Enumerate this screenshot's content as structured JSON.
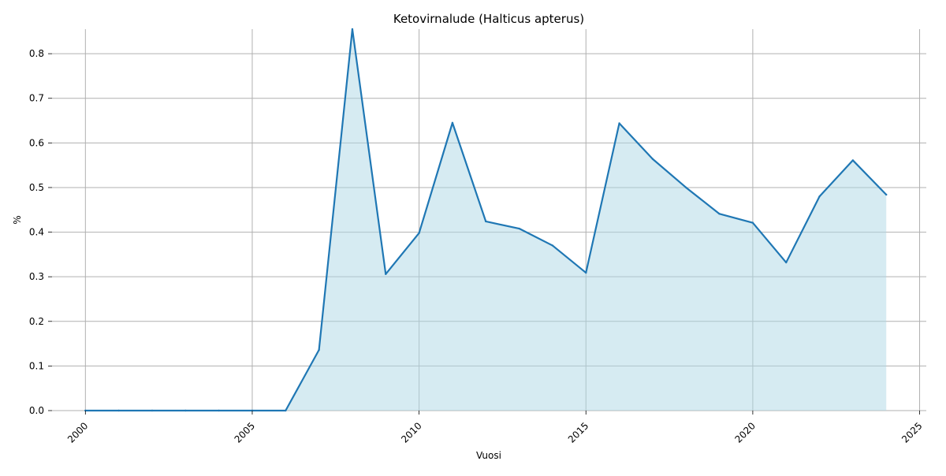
{
  "chart_data": {
    "type": "area",
    "title": "Ketovirnalude (Halticus apterus)",
    "xlabel": "Vuosi",
    "ylabel": "%",
    "xlim": [
      1999.0,
      2025.2
    ],
    "ylim": [
      0,
      0.855
    ],
    "x_ticks": [
      2000,
      2005,
      2010,
      2015,
      2020,
      2025
    ],
    "y_ticks": [
      0.0,
      0.1,
      0.2,
      0.3,
      0.4,
      0.5,
      0.6,
      0.7,
      0.8
    ],
    "x_tick_rotation": 45,
    "grid": true,
    "legend": "none",
    "series": [
      {
        "x": [
          2000,
          2001,
          2002,
          2003,
          2004,
          2005,
          2006,
          2007,
          2008,
          2009,
          2010,
          2011,
          2012,
          2013,
          2014,
          2015,
          2016,
          2017,
          2018,
          2019,
          2020,
          2021,
          2022,
          2023,
          2024
        ],
        "values": [
          0,
          0,
          0,
          0,
          0,
          0,
          0,
          0.136,
          0.855,
          0.306,
          0.398,
          0.645,
          0.424,
          0.408,
          0.37,
          0.309,
          0.644,
          0.564,
          0.5,
          0.441,
          0.421,
          0.332,
          0.48,
          0.561,
          0.484
        ],
        "line_color": "#1f77b4",
        "fill_color": "#add8e6"
      }
    ]
  }
}
